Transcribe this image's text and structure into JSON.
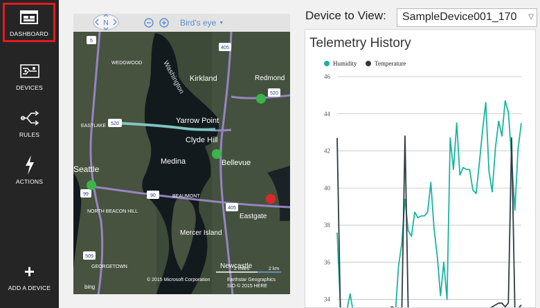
{
  "sidebar": {
    "items": [
      {
        "label": "DASHBOARD",
        "icon": "dashboard-icon",
        "selected": true
      },
      {
        "label": "DEVICES",
        "icon": "devices-icon"
      },
      {
        "label": "RULES",
        "icon": "rules-icon"
      },
      {
        "label": "ACTIONS",
        "icon": "actions-icon"
      },
      {
        "label": "ADD A DEVICE",
        "icon": "plus-icon"
      }
    ],
    "highlight_color": "#e5191f"
  },
  "map": {
    "compass_label": "N",
    "view_mode": "Bird's eye",
    "places": [
      "WEDGWOOD",
      "Kirkland",
      "Redmond",
      "Washington",
      "EASTLAKE",
      "Yarrow Point",
      "Clyde Hill",
      "Seattle",
      "Medina",
      "Bellevue",
      "NORTH BEACON HILL",
      "BEAUMONT",
      "Eastgate",
      "Mercer Island",
      "Newcastle",
      "GEORGETOWN"
    ],
    "highways": [
      "5",
      "405",
      "520",
      "520",
      "99",
      "90",
      "405",
      "509"
    ],
    "scale_labels": [
      "2 miles",
      "2 km"
    ],
    "attribution": "© 2015 Microsoft Corporation",
    "attribution_extra": [
      "Earthstar Geographics",
      "SIO  © 2015 HERE"
    ],
    "logo": "bing",
    "device_markers": [
      {
        "status": "ok",
        "color": "#3bb54a"
      },
      {
        "status": "ok",
        "color": "#3bb54a"
      },
      {
        "status": "ok",
        "color": "#3bb54a"
      },
      {
        "status": "alert",
        "color": "#e0262a"
      }
    ]
  },
  "device_picker": {
    "label": "Device to View:",
    "selected": "SampleDevice001_170"
  },
  "chart_data": {
    "type": "line",
    "title": "Telemetry History",
    "ylim": [
      33.5,
      46
    ],
    "yticks": [
      "46",
      "44",
      "42",
      "40",
      "38",
      "36",
      "34"
    ],
    "legend_position": "top-left",
    "grid": true,
    "series": [
      {
        "name": "Humidity",
        "color": "#1ab3a0",
        "values": [
          37.6,
          33.6,
          33.3,
          33.4,
          34.3,
          33.3,
          33.3,
          33.3,
          33.2,
          33.3,
          33.3,
          33.2,
          33.4,
          33.3,
          33.5,
          33.4,
          33.2,
          33.6,
          33.2,
          35.8,
          37.0,
          39.4,
          37.7,
          37.4,
          38.7,
          38.4,
          38.5,
          38.5,
          38.7,
          40.3,
          37.8,
          36.3,
          34.2,
          36.0,
          34.0,
          42.7,
          41.0,
          43.5,
          40.7,
          41.1,
          41.0,
          41.0,
          39.9,
          39.7,
          41.3,
          43.1,
          44.6,
          40.9,
          39.8,
          42.2,
          43.6,
          42.8,
          44.7,
          44.1,
          41.6,
          38.8,
          42.1,
          43.5
        ]
      },
      {
        "name": "Temperature",
        "color": "#2e3b42",
        "values": [
          42.7,
          33.3,
          33.5,
          33.0,
          33.3,
          33.3,
          32.9,
          33.0,
          33.1,
          33.1,
          33.1,
          33.2,
          33.5,
          33.4,
          33.5,
          33.3,
          33.5,
          33.6,
          33.5,
          33.4,
          33.2,
          42.8,
          33.3,
          33.4,
          33.2,
          33.2,
          33.2,
          33.3,
          33.3,
          33.4,
          33.3,
          33.2,
          33.3,
          33.2,
          33.3,
          33.2,
          33.3,
          33.1,
          33.0,
          33.3,
          33.3,
          33.1,
          33.3,
          33.4,
          33.3,
          33.5,
          33.5,
          33.5,
          33.6,
          33.7,
          33.8,
          33.8,
          33.6,
          33.8,
          42.7,
          33.5,
          33.5,
          33.7
        ]
      }
    ]
  }
}
